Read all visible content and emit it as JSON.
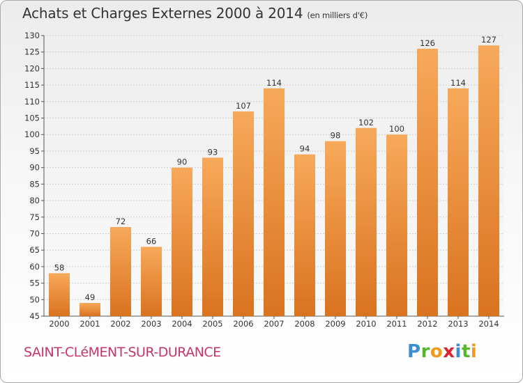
{
  "title": "Achats et Charges Externes 2000 à 2014",
  "subtitle": "(en milliers d'€)",
  "city": "SAINT-CLéMENT-SUR-DURANCE",
  "logo": {
    "letters": [
      "P",
      "r",
      "o",
      "x",
      "i",
      "t",
      "i"
    ],
    "colors": [
      "#3a8fd2",
      "#58b62e",
      "#f29a1e",
      "#d9262e",
      "#3a8fd2",
      "#58b62e",
      "#f29a1e"
    ]
  },
  "colors": {
    "bar_top": "#f7a95a",
    "bar_bottom": "#d9731f",
    "city": "#c2366e"
  },
  "chart_data": {
    "type": "bar",
    "categories": [
      "2000",
      "2001",
      "2002",
      "2003",
      "2004",
      "2005",
      "2006",
      "2007",
      "2008",
      "2009",
      "2010",
      "2011",
      "2012",
      "2013",
      "2014"
    ],
    "values": [
      58,
      49,
      72,
      66,
      90,
      93,
      107,
      114,
      94,
      98,
      102,
      100,
      126,
      114,
      127
    ],
    "title": "Achats et Charges Externes 2000 à 2014",
    "xlabel": "",
    "ylabel": "",
    "ylim": [
      45,
      130
    ],
    "yticks": [
      45,
      50,
      55,
      60,
      65,
      70,
      75,
      80,
      85,
      90,
      95,
      100,
      105,
      110,
      115,
      120,
      125,
      130
    ],
    "grid": true,
    "legend": "none"
  }
}
